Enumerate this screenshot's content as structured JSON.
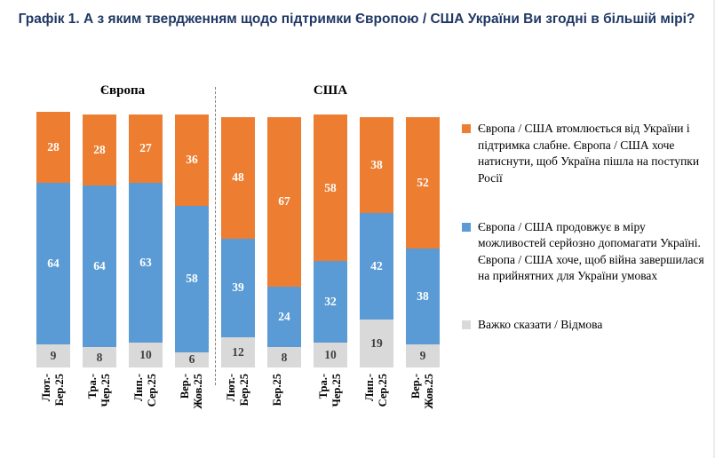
{
  "title": "Графік 1. А з яким твердженням щодо підтримки Європою / США України Ви згодні в більшій мірі?",
  "chart_data": {
    "type": "bar",
    "stacked": true,
    "unit": "%",
    "ylim": [
      0,
      100
    ],
    "grid": false,
    "legend_position": "right",
    "groups": [
      {
        "label": "Європа",
        "categories": [
          [
            "Лют.-",
            "Бер.25"
          ],
          [
            "Тра.-",
            "Чер.25"
          ],
          [
            "Лип.-",
            "Сер.25"
          ],
          [
            "Вер.-",
            "Жов.25"
          ]
        ],
        "series": [
          {
            "key": "hard-to-say",
            "name": "Важко сказати / Відмова",
            "color": "#d9d9d9",
            "label_color": "#404040",
            "values": [
              9,
              8,
              10,
              6
            ]
          },
          {
            "key": "continues-to-help",
            "name": "Європа / США продовжує в міру можливостей серйозно допомагати Україні",
            "color": "#5b9bd5",
            "label_color": "#ffffff",
            "values": [
              64,
              64,
              63,
              58
            ]
          },
          {
            "key": "tired-of-ukraine",
            "name": "Європа / США втомлюється від України і підтримка слабне",
            "color": "#ed7d31",
            "label_color": "#ffffff",
            "values": [
              28,
              28,
              27,
              36
            ]
          }
        ]
      },
      {
        "label": "США",
        "categories": [
          [
            "Лют.-",
            "Бер.25"
          ],
          [
            "Бер.25"
          ],
          [
            "Тра.-",
            "Чер.25"
          ],
          [
            "Лип.-",
            "Сер.25"
          ],
          [
            "Вер.-",
            "Жов.25"
          ]
        ],
        "series": [
          {
            "key": "hard-to-say",
            "name": "Важко сказати / Відмова",
            "color": "#d9d9d9",
            "label_color": "#404040",
            "values": [
              12,
              8,
              10,
              19,
              9
            ]
          },
          {
            "key": "continues-to-help",
            "name": "Європа / США продовжує в міру можливостей серйозно допомагати Україні",
            "color": "#5b9bd5",
            "label_color": "#ffffff",
            "values": [
              39,
              24,
              32,
              42,
              38
            ]
          },
          {
            "key": "tired-of-ukraine",
            "name": "Європа / США втомлюється від України і підтримка слабне",
            "color": "#ed7d31",
            "label_color": "#ffffff",
            "values": [
              48,
              67,
              58,
              38,
              52
            ]
          }
        ]
      }
    ],
    "legend": [
      {
        "key": "tired-of-ukraine",
        "color": "#ed7d31",
        "label": "Європа / США втомлюється від України і підтримка слабне. Європа / США хоче натиснути, щоб Україна пішла на поступки Росії"
      },
      {
        "key": "continues-to-help",
        "color": "#5b9bd5",
        "label": "Європа / США продовжує в міру можливостей серйозно допомагати Україні. Європа / США хоче, щоб війна завершилася на прийнятних для України умовах"
      },
      {
        "key": "hard-to-say",
        "color": "#d9d9d9",
        "label": "Важко сказати / Відмова"
      }
    ]
  }
}
